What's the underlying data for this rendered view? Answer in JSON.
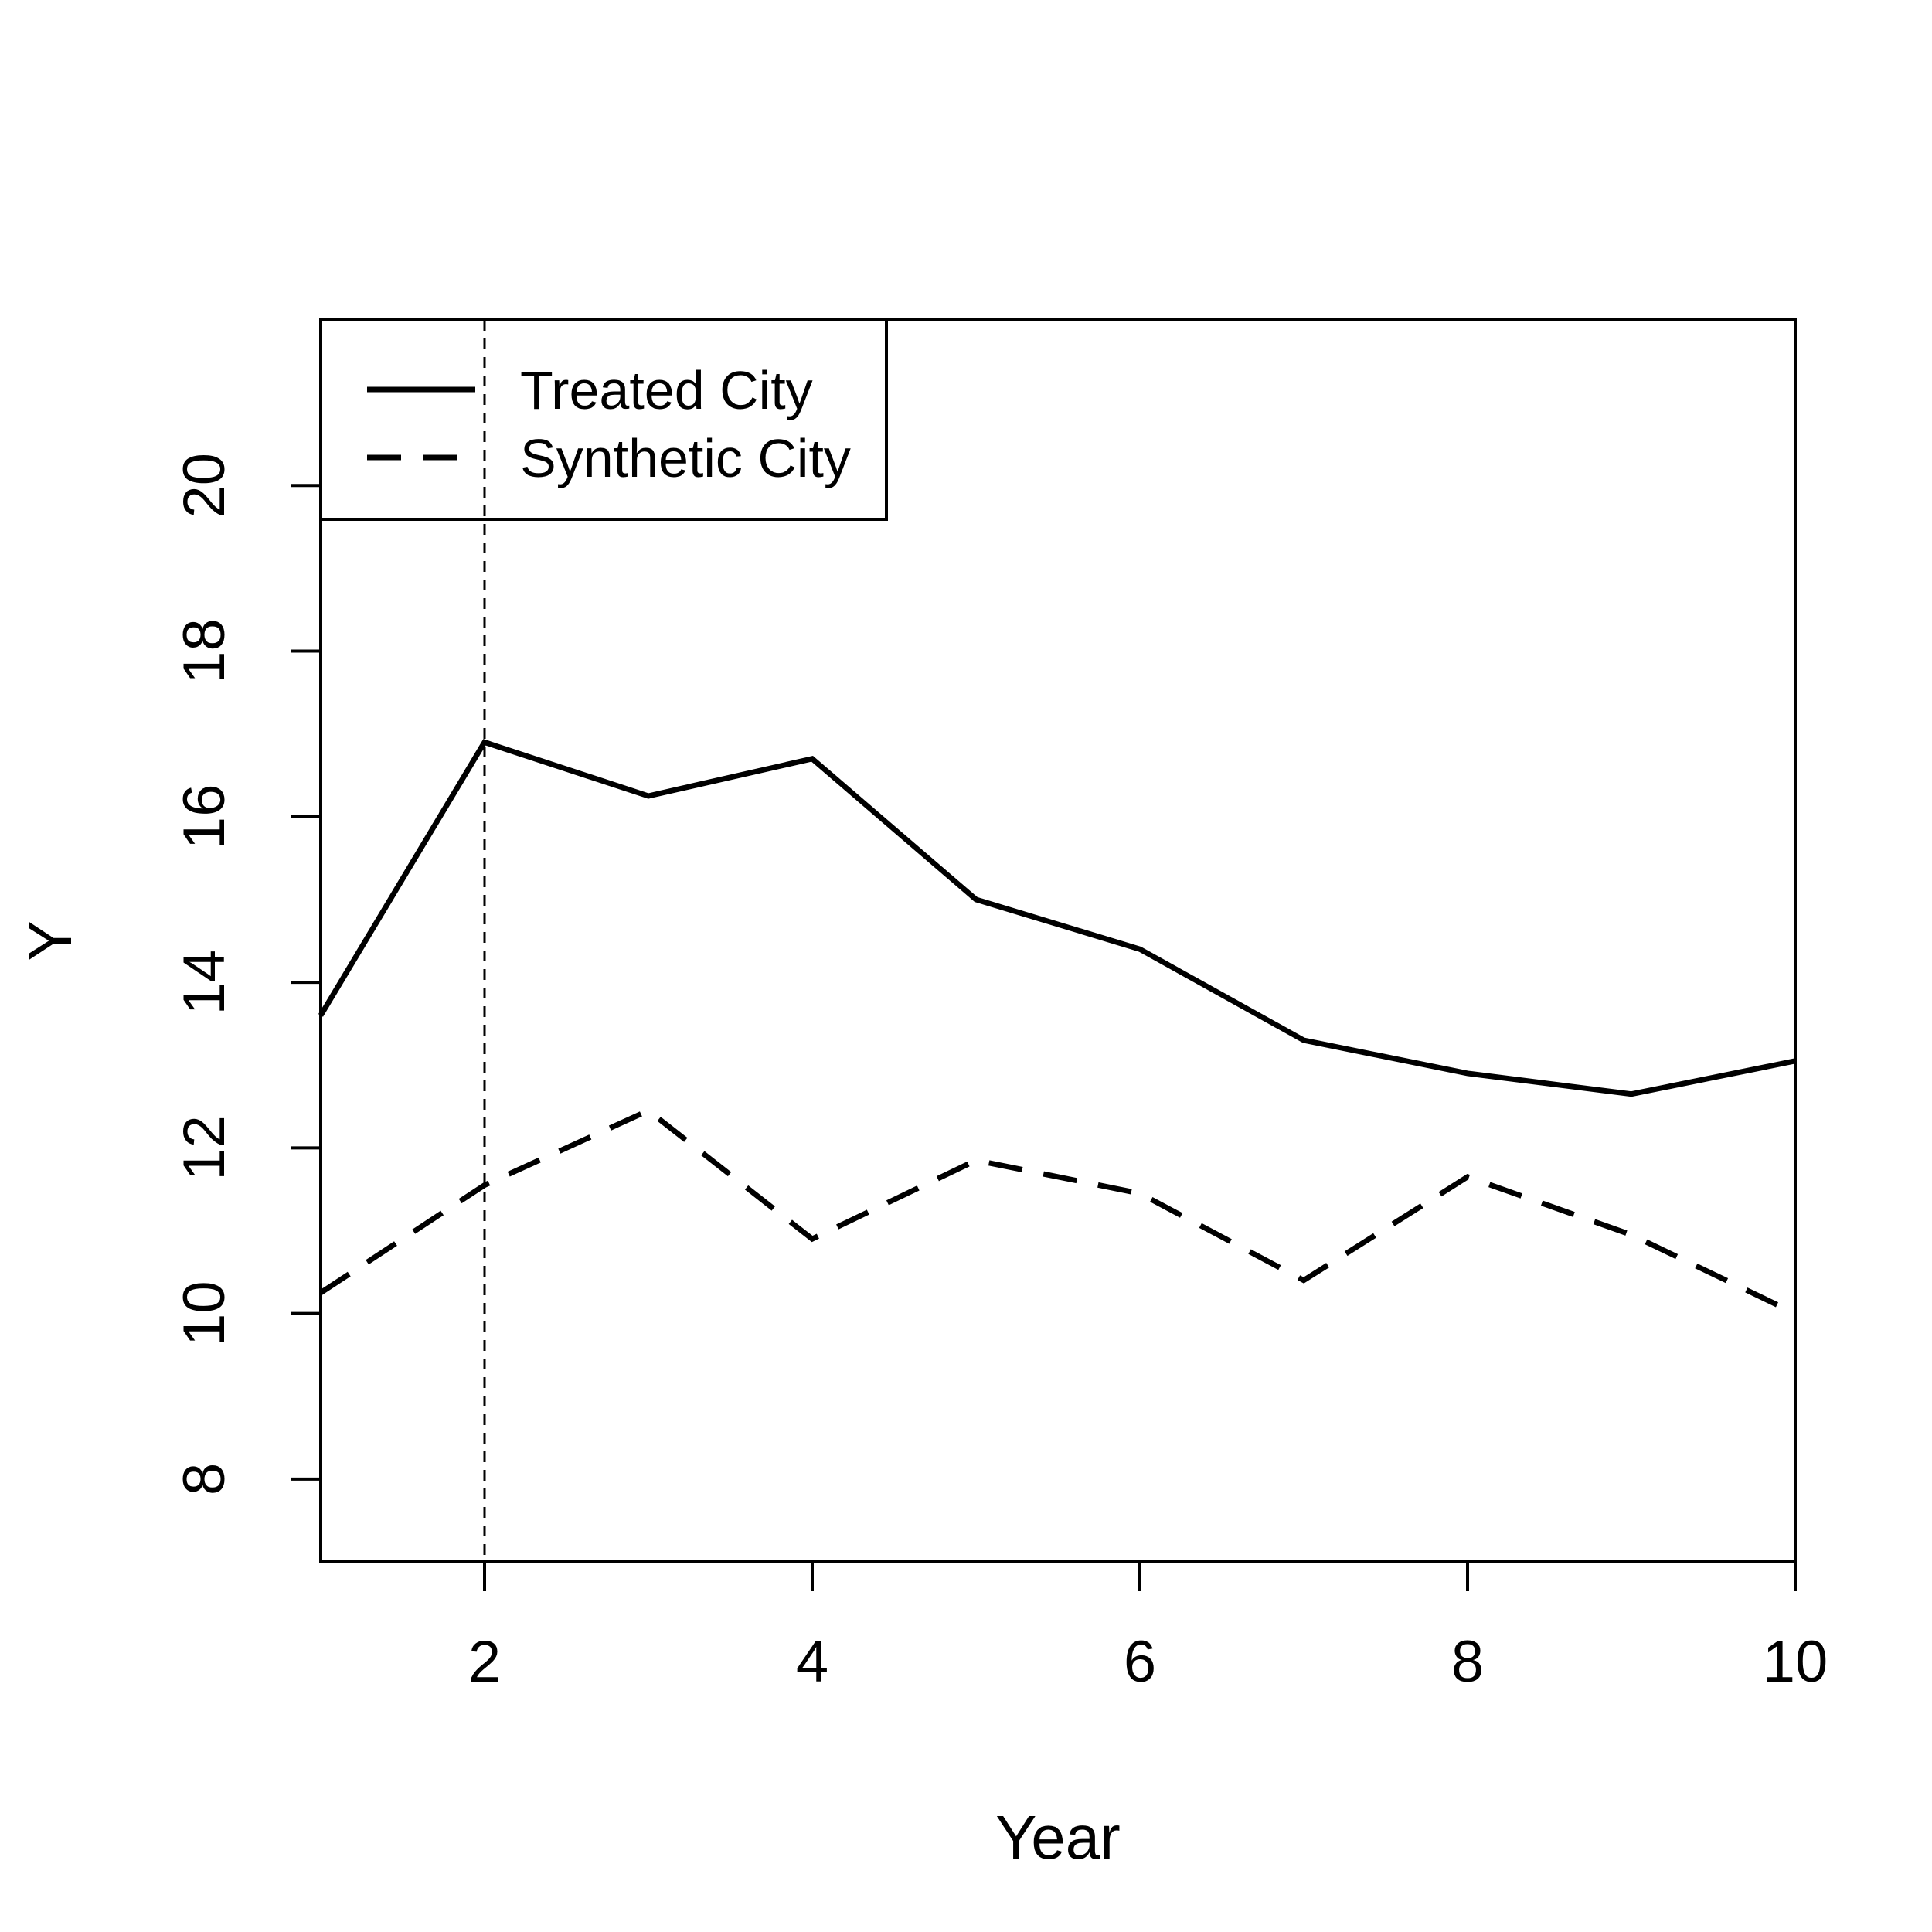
{
  "chart_data": {
    "type": "line",
    "title": "",
    "xlabel": "Year",
    "ylabel": "Y",
    "xlim": [
      1,
      10
    ],
    "ylim": [
      7,
      22
    ],
    "x_ticks": [
      2,
      4,
      6,
      8,
      10
    ],
    "y_ticks": [
      8,
      10,
      12,
      14,
      16,
      18,
      20
    ],
    "x": [
      1,
      2,
      3,
      4,
      5,
      6,
      7,
      8,
      9,
      10
    ],
    "series": [
      {
        "name": "Treated City",
        "line_style": "solid",
        "color": "#000000",
        "values": [
          13.6,
          16.9,
          16.25,
          16.7,
          15.0,
          14.4,
          13.3,
          12.9,
          12.65,
          13.05
        ]
      },
      {
        "name": "Synthetic City",
        "line_style": "dashed",
        "color": "#000000",
        "values": [
          10.25,
          11.55,
          12.45,
          10.9,
          11.85,
          11.45,
          10.4,
          11.65,
          10.95,
          10.0
        ]
      }
    ],
    "vertical_line": {
      "x": 2,
      "line_style": "dashed"
    },
    "legend_position": "top-left",
    "grid": false
  }
}
